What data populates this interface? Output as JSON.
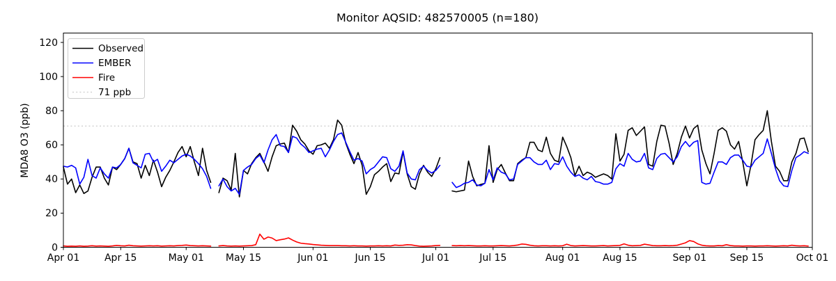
{
  "title": "Monitor AQSID: 482570005 (n=180)",
  "colors": {
    "observed": "#000000",
    "ember": "#0000ff",
    "fire": "#ff0000",
    "threshold": "#d3d3d3",
    "spine": "#000000",
    "background": "#ffffff"
  },
  "chart_data": {
    "type": "line",
    "title": "Monitor AQSID: 482570005 (n=180)",
    "xlabel": "",
    "ylabel": "MDA8 O3 (ppb)",
    "ylim": [
      0,
      125.5
    ],
    "yticks": [
      0,
      20,
      40,
      60,
      80,
      100,
      120
    ],
    "x_range_days": 183,
    "x_unit": "days since Apr 01",
    "xticks": [
      {
        "label": "Apr 01",
        "day": 0
      },
      {
        "label": "Apr 15",
        "day": 14
      },
      {
        "label": "May 01",
        "day": 30
      },
      {
        "label": "May 15",
        "day": 44
      },
      {
        "label": "Jun 01",
        "day": 61
      },
      {
        "label": "Jun 15",
        "day": 75
      },
      {
        "label": "Jul 01",
        "day": 91
      },
      {
        "label": "Jul 15",
        "day": 105
      },
      {
        "label": "Aug 01",
        "day": 122
      },
      {
        "label": "Aug 15",
        "day": 136
      },
      {
        "label": "Sep 01",
        "day": 153
      },
      {
        "label": "Sep 15",
        "day": 167
      },
      {
        "label": "Oct 01",
        "day": 183
      }
    ],
    "grid": false,
    "legend_position": "upper-left",
    "legend": [
      {
        "label": "Observed",
        "color": "#000000",
        "style": "solid"
      },
      {
        "label": "EMBER",
        "color": "#0000ff",
        "style": "solid"
      },
      {
        "label": "Fire",
        "color": "#ff0000",
        "style": "solid"
      },
      {
        "label": "71 ppb",
        "color": "#d3d3d3",
        "style": "dotted"
      }
    ],
    "threshold": {
      "value": 71,
      "label": "71 ppb",
      "color": "#d3d3d3",
      "style": "dotted"
    },
    "missing_dates": [
      "May 08",
      "Jul 03",
      "Jul 04"
    ],
    "n_points": 180,
    "series": [
      {
        "name": "Observed",
        "color": "#000000",
        "values": [
          47,
          37,
          40,
          32,
          36.5,
          31.5,
          33,
          41,
          47,
          47,
          40.5,
          36.5,
          47,
          45.5,
          48.5,
          52,
          58,
          50,
          49,
          40.5,
          48,
          42,
          51,
          44,
          35.5,
          41,
          45,
          50,
          55.5,
          59,
          53,
          59,
          50,
          42,
          58,
          45,
          38,
          null,
          32,
          40.5,
          39,
          33.5,
          55,
          29.5,
          45,
          43,
          49,
          52.5,
          55,
          50,
          44.5,
          53,
          59.5,
          60.5,
          61,
          55.5,
          71.5,
          68,
          63,
          60.5,
          56.5,
          54.5,
          59.5,
          60,
          61,
          58,
          63,
          74.5,
          71.5,
          61,
          54.5,
          49,
          55.5,
          48,
          31,
          35.5,
          42.5,
          44.5,
          47,
          49,
          38.5,
          43.5,
          43,
          56,
          43,
          35.5,
          34,
          43,
          48,
          44,
          41.5,
          46,
          52.5,
          null,
          null,
          33,
          32.5,
          33,
          33.5,
          50.5,
          41.5,
          36,
          36.8,
          37.5,
          59.5,
          38,
          45.5,
          48.5,
          43.5,
          39,
          39,
          49,
          51,
          52.5,
          61.5,
          61.5,
          57,
          56,
          64.5,
          55,
          51,
          50,
          64.5,
          59,
          52.5,
          42,
          47.5,
          42,
          44,
          43,
          41,
          42,
          43,
          42,
          40,
          66.5,
          50.5,
          54.5,
          68.5,
          70,
          65.5,
          68,
          70.5,
          48.5,
          47.5,
          62,
          71.5,
          71,
          61,
          48.5,
          55,
          64.5,
          71,
          64,
          69.5,
          71.5,
          57,
          49,
          43,
          55,
          68.5,
          70,
          68,
          60,
          57.5,
          62,
          50,
          36,
          48,
          63,
          66,
          68.5,
          80,
          62,
          47.5,
          44.5,
          39,
          39,
          50,
          55,
          63.5,
          64,
          56
        ]
      },
      {
        "name": "EMBER",
        "color": "#0000ff",
        "values": [
          47.5,
          47,
          48,
          46.5,
          37,
          41,
          51.5,
          42,
          40.5,
          46.5,
          43,
          40.5,
          47,
          46.5,
          48.5,
          52,
          58,
          49.5,
          48,
          46.5,
          54.5,
          55,
          50,
          51.5,
          44.5,
          47.5,
          51,
          49.5,
          51.5,
          53.5,
          54.5,
          53.5,
          51.5,
          49,
          46,
          41.5,
          34.5,
          null,
          36,
          40,
          35.5,
          33,
          34.5,
          31,
          45,
          47,
          48.5,
          52,
          54,
          49.5,
          57,
          63,
          66,
          59.5,
          59,
          55.5,
          65,
          64,
          60.5,
          58.5,
          55.5,
          56.5,
          57.5,
          58,
          53,
          57,
          62,
          66,
          67,
          61.5,
          56,
          51,
          52,
          50.5,
          43,
          45.5,
          47,
          50,
          53,
          52.5,
          46,
          44.5,
          47.5,
          56.5,
          43.5,
          40,
          39.5,
          45.5,
          47.5,
          45,
          43.5,
          45,
          48,
          null,
          null,
          38,
          35,
          36,
          37.5,
          38,
          39.5,
          36.5,
          36,
          37.5,
          45.5,
          39.5,
          46.5,
          44,
          43,
          39.5,
          40,
          48.5,
          50.5,
          52.5,
          52.5,
          50,
          48.5,
          48.5,
          51,
          45.5,
          49,
          48.5,
          53,
          47.5,
          44,
          41.5,
          42.5,
          40.5,
          39.5,
          41.5,
          38.5,
          38,
          37,
          37,
          38,
          46,
          49,
          47.5,
          55,
          51.5,
          50,
          50.5,
          55,
          46.5,
          45.5,
          52,
          54.5,
          55,
          52.5,
          50,
          53,
          59,
          62,
          59,
          61.5,
          62.5,
          38,
          37,
          37.5,
          44,
          50,
          50,
          48.5,
          52.5,
          54,
          54,
          51,
          47.5,
          47,
          51,
          53,
          55,
          63.5,
          55,
          46,
          39,
          36,
          35.5,
          45,
          52.5,
          54,
          56,
          55
        ]
      },
      {
        "name": "Fire",
        "color": "#ff0000",
        "values": [
          0.8,
          0.6,
          0.7,
          0.6,
          0.8,
          0.6,
          0.7,
          0.9,
          0.7,
          0.8,
          0.7,
          0.6,
          0.8,
          1.1,
          0.9,
          0.8,
          1.2,
          0.9,
          0.8,
          0.7,
          0.8,
          0.9,
          0.8,
          0.9,
          0.7,
          0.8,
          0.9,
          0.8,
          1.0,
          1.1,
          1.3,
          1.0,
          0.9,
          0.8,
          0.9,
          0.8,
          0.7,
          null,
          0.8,
          1.0,
          0.8,
          0.7,
          0.8,
          0.7,
          0.8,
          0.9,
          1.0,
          1.5,
          7.7,
          4.7,
          6.0,
          5.4,
          3.9,
          4.4,
          4.8,
          5.5,
          4.2,
          3.1,
          2.4,
          2.1,
          1.9,
          1.6,
          1.4,
          1.2,
          1.1,
          1.0,
          1.0,
          1.0,
          0.9,
          0.9,
          0.8,
          0.9,
          0.8,
          0.8,
          0.7,
          0.8,
          0.8,
          0.9,
          0.8,
          0.9,
          0.8,
          1.3,
          1.1,
          1.2,
          1.5,
          1.4,
          1.0,
          0.7,
          0.6,
          0.7,
          0.8,
          1.0,
          1.1,
          null,
          null,
          1.0,
          0.9,
          1.0,
          0.9,
          1.0,
          0.9,
          0.8,
          0.8,
          0.9,
          0.8,
          0.8,
          0.9,
          1.0,
          0.9,
          0.8,
          1.0,
          1.3,
          1.9,
          1.7,
          1.2,
          0.9,
          0.8,
          0.9,
          0.9,
          0.8,
          0.9,
          0.8,
          0.9,
          1.8,
          1.0,
          0.8,
          0.9,
          1.0,
          0.9,
          0.8,
          0.8,
          0.9,
          1.0,
          0.8,
          0.9,
          1.0,
          1.1,
          2.0,
          1.2,
          0.9,
          1.0,
          1.1,
          1.8,
          1.4,
          1.0,
          0.9,
          0.9,
          1.0,
          0.9,
          1.0,
          1.2,
          1.9,
          2.6,
          3.9,
          3.4,
          2.0,
          1.2,
          0.9,
          0.8,
          0.8,
          1.0,
          0.9,
          1.5,
          1.0,
          0.8,
          0.8,
          0.7,
          0.8,
          0.8,
          0.7,
          0.8,
          0.8,
          0.9,
          0.8,
          0.7,
          0.8,
          0.9,
          0.8,
          1.2,
          0.9,
          0.8,
          0.9,
          0.7
        ]
      }
    ]
  }
}
